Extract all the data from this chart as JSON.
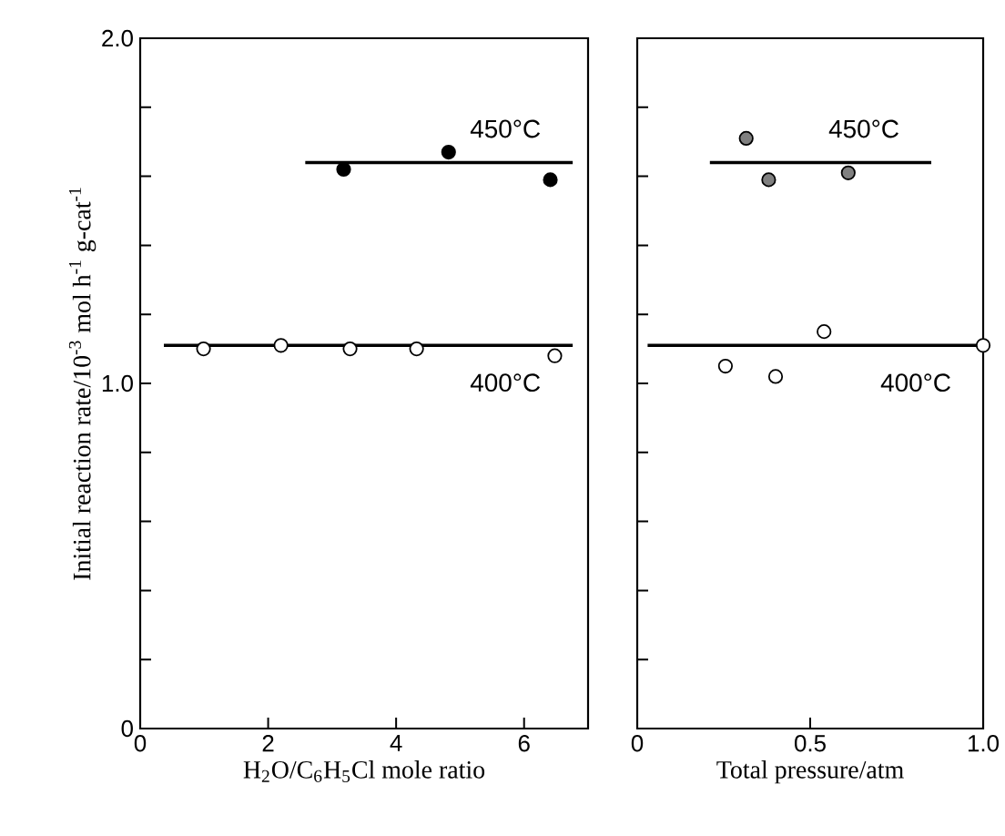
{
  "chart_data": [
    {
      "type": "scatter",
      "ylabel": "Initial reaction rate/10$^{-3}$ mol h$^{-1}$ g-cat$^{-1}$",
      "xlabel": "H$_{2}$O/C$_{6}$H$_{5}$Cl mole ratio",
      "xlim": [
        0,
        7
      ],
      "xticks": [
        0,
        2,
        4,
        6
      ],
      "ylim": [
        0,
        2.0
      ],
      "yticks": [
        0,
        {
          "value": 0.2,
          "label": null
        },
        {
          "value": 0.4,
          "label": null
        },
        {
          "value": 0.6,
          "label": null
        },
        {
          "value": 0.8,
          "label": null
        },
        {
          "value": 1.0,
          "label": "1.0"
        },
        {
          "value": 1.2,
          "label": null
        },
        {
          "value": 1.4,
          "label": null
        },
        {
          "value": 1.6,
          "label": null
        },
        {
          "value": 1.8,
          "label": null
        },
        {
          "value": 2.0,
          "label": "2.0"
        }
      ],
      "marker": "circle",
      "grid": false,
      "series": [
        {
          "color": "#000000",
          "x": [
            3.18,
            4.82,
            6.41
          ],
          "values": [
            1.62,
            1.67,
            1.59
          ]
        },
        {
          "color": "#ffffff",
          "x": [
            0.99,
            2.2,
            3.28,
            4.32,
            6.48
          ],
          "values": [
            1.1,
            1.11,
            1.1,
            1.1,
            1.08
          ]
        },
        {
          "type": "line",
          "marker": "none",
          "color": "#000000",
          "x": [
            2.58,
            6.76
          ],
          "values": [
            1.64,
            1.64
          ]
        },
        {
          "type": "line",
          "marker": "none",
          "color": "#000000",
          "x": [
            0.37,
            6.76
          ],
          "values": [
            1.11,
            1.11
          ]
        }
      ],
      "annotations": [
        "450°C",
        "400°C"
      ]
    },
    {
      "type": "scatter",
      "xlabel": "Total pressure/atm",
      "xlim": [
        0,
        1.0
      ],
      "xticks": [
        0,
        0.5,
        {
          "value": 1.0,
          "label": "1.0"
        }
      ],
      "ylim": [
        0,
        2.0
      ],
      "yticks": [
        {
          "value": 0,
          "label": null
        },
        {
          "value": 0.2,
          "label": null
        },
        {
          "value": 0.4,
          "label": null
        },
        {
          "value": 0.6,
          "label": null
        },
        {
          "value": 0.8,
          "label": null
        },
        {
          "value": 1.0,
          "label": null
        },
        {
          "value": 1.2,
          "label": null
        },
        {
          "value": 1.4,
          "label": null
        },
        {
          "value": 1.6,
          "label": null
        },
        {
          "value": 1.8,
          "label": null
        },
        {
          "value": 2.0,
          "label": null
        }
      ],
      "tick_labels": "x",
      "marker": "circle",
      "grid": false,
      "series": [
        {
          "color": "#808080",
          "x": [
            0.315,
            0.38,
            0.61
          ],
          "values": [
            1.71,
            1.59,
            1.61
          ]
        },
        {
          "color": "#ffffff",
          "x": [
            0.255,
            0.4,
            0.54,
            1.0
          ],
          "values": [
            1.05,
            1.02,
            1.15,
            1.11
          ]
        },
        {
          "type": "line",
          "marker": "none",
          "color": "#000000",
          "x": [
            0.21,
            0.85
          ],
          "values": [
            1.64,
            1.64
          ]
        },
        {
          "type": "line",
          "marker": "none",
          "color": "#000000",
          "x": [
            0.03,
            1.0
          ],
          "values": [
            1.11,
            1.11
          ]
        }
      ],
      "annotations": [
        "450°C",
        "400°C"
      ]
    }
  ]
}
